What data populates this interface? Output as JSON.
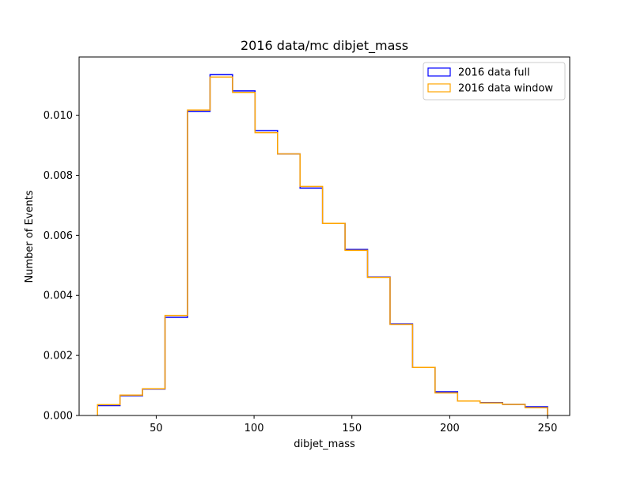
{
  "colors": {
    "full": "#0000ff",
    "window": "#ffa500",
    "axes": "#000000",
    "background": "#ffffff"
  },
  "chart_data": {
    "type": "histogram-step",
    "title": "2016 data/mc dibjet_mass",
    "xlabel": "dibjet_mass",
    "ylabel": "Number of Events",
    "xlim": [
      10.6,
      261.3
    ],
    "ylim": [
      0,
      0.01194
    ],
    "xticks": [
      50,
      100,
      150,
      200,
      250
    ],
    "yticks": [
      0.0,
      0.002,
      0.004,
      0.006,
      0.008,
      0.01
    ],
    "ytick_labels": [
      "0.000",
      "0.002",
      "0.004",
      "0.006",
      "0.008",
      "0.010"
    ],
    "grid": false,
    "legend_position": "upper right",
    "bin_edges": [
      20,
      31.5,
      43,
      54.5,
      66,
      77.5,
      89,
      100.5,
      112,
      123.5,
      135,
      146.5,
      158,
      169.5,
      181,
      192.5,
      204,
      215.5,
      227,
      238.5,
      250
    ],
    "series": [
      {
        "name": "2016 data full",
        "color": "#0000ff",
        "values": [
          0.00033,
          0.00066,
          0.00088,
          0.00327,
          0.01013,
          0.01135,
          0.01081,
          0.00949,
          0.00871,
          0.00757,
          0.0064,
          0.00553,
          0.00461,
          0.00305,
          0.0016,
          0.00079,
          0.00048,
          0.00043,
          0.00037,
          0.00029
        ]
      },
      {
        "name": "2016 data window",
        "color": "#ffa500",
        "values": [
          0.00036,
          0.00068,
          0.00089,
          0.00333,
          0.01017,
          0.01127,
          0.01076,
          0.00942,
          0.00871,
          0.00763,
          0.0064,
          0.0055,
          0.0046,
          0.00303,
          0.0016,
          0.00075,
          0.00048,
          0.00042,
          0.00037,
          0.00026
        ]
      }
    ]
  }
}
